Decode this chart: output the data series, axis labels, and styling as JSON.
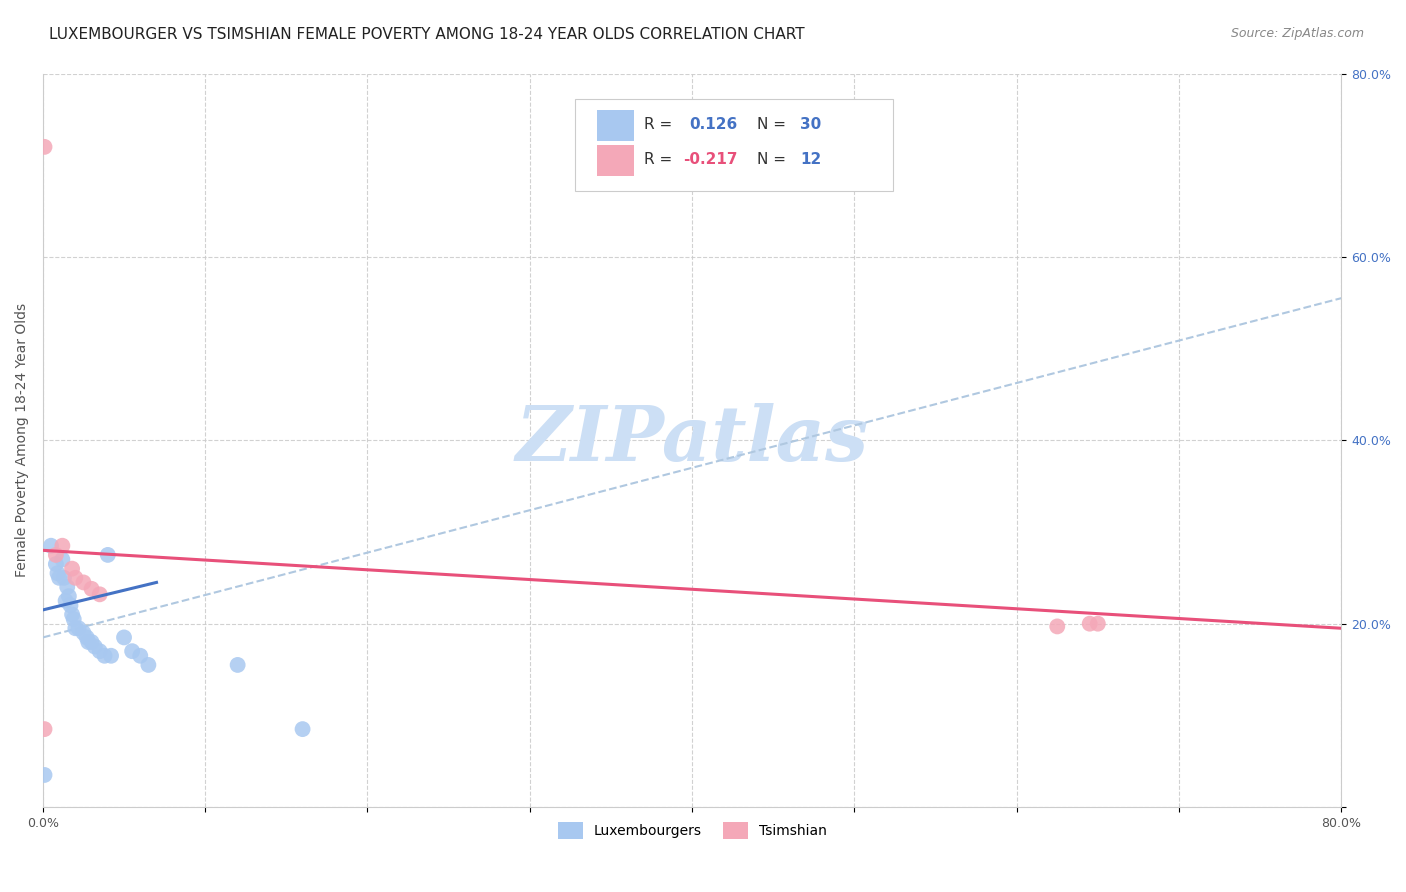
{
  "title": "LUXEMBOURGER VS TSIMSHIAN FEMALE POVERTY AMONG 18-24 YEAR OLDS CORRELATION CHART",
  "source": "Source: ZipAtlas.com",
  "ylabel": "Female Poverty Among 18-24 Year Olds",
  "xlim": [
    0.0,
    0.8
  ],
  "ylim": [
    0.0,
    0.8
  ],
  "xticks": [
    0.0,
    0.1,
    0.2,
    0.3,
    0.4,
    0.5,
    0.6,
    0.7,
    0.8
  ],
  "yticks": [
    0.0,
    0.2,
    0.4,
    0.6,
    0.8
  ],
  "xtick_labels": [
    "0.0%",
    "",
    "",
    "",
    "",
    "",
    "",
    "",
    "80.0%"
  ],
  "ytick_labels": [
    "",
    "20.0%",
    "40.0%",
    "60.0%",
    "80.0%"
  ],
  "grid_color": "#cccccc",
  "background_color": "#ffffff",
  "lux_color": "#a8c8f0",
  "tsi_color": "#f4a8b8",
  "lux_line_color": "#4472c4",
  "tsi_line_color": "#e8507a",
  "dashed_line_color": "#b0c8e0",
  "lux_r": 0.126,
  "lux_n": 30,
  "tsi_r": -0.217,
  "tsi_n": 12,
  "lux_x": [
    0.001,
    0.005,
    0.008,
    0.009,
    0.01,
    0.012,
    0.013,
    0.014,
    0.015,
    0.016,
    0.017,
    0.018,
    0.019,
    0.02,
    0.022,
    0.025,
    0.027,
    0.028,
    0.03,
    0.032,
    0.035,
    0.038,
    0.04,
    0.042,
    0.05,
    0.055,
    0.06,
    0.065,
    0.12,
    0.16
  ],
  "lux_y": [
    0.035,
    0.285,
    0.265,
    0.255,
    0.25,
    0.27,
    0.25,
    0.225,
    0.24,
    0.23,
    0.22,
    0.21,
    0.205,
    0.195,
    0.195,
    0.19,
    0.185,
    0.18,
    0.18,
    0.175,
    0.17,
    0.165,
    0.275,
    0.165,
    0.185,
    0.17,
    0.165,
    0.155,
    0.155,
    0.085
  ],
  "tsi_x": [
    0.001,
    0.008,
    0.012,
    0.018,
    0.02,
    0.025,
    0.03,
    0.035,
    0.625,
    0.645,
    0.65,
    0.001
  ],
  "tsi_y": [
    0.085,
    0.275,
    0.285,
    0.26,
    0.25,
    0.245,
    0.238,
    0.232,
    0.197,
    0.2,
    0.2,
    0.72
  ],
  "lux_line_x0": 0.0,
  "lux_line_x1": 0.07,
  "lux_line_y0": 0.215,
  "lux_line_y1": 0.245,
  "tsi_line_x0": 0.0,
  "tsi_line_x1": 0.8,
  "tsi_line_y0": 0.28,
  "tsi_line_y1": 0.195,
  "dash_line_x0": 0.0,
  "dash_line_x1": 0.8,
  "dash_line_y0": 0.185,
  "dash_line_y1": 0.555,
  "watermark": "ZIPatlas",
  "watermark_color": "#ccdff5",
  "title_fontsize": 11,
  "axis_label_fontsize": 10,
  "tick_fontsize": 9,
  "legend_fontsize": 11,
  "source_fontsize": 9
}
